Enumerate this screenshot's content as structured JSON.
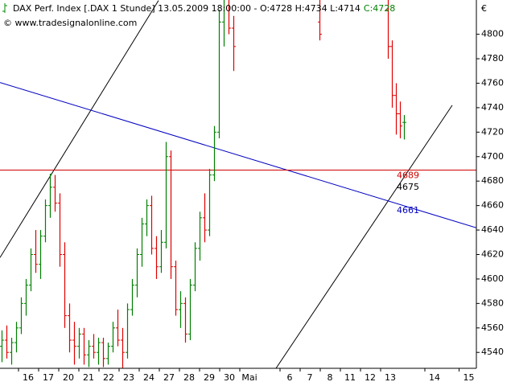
{
  "chart_data": {
    "type": "ohlc",
    "title": "DAX Perf. Index [.DAX  1 Stunde] 13.05.2009 18:00:00 - O:4728 H:4734 L:4714",
    "close_label": "C:4728",
    "watermark": "© www.tradesignalonline.com",
    "y_unit": "€",
    "x": [
      -1.3,
      -1.06,
      -0.82,
      -0.58,
      -0.34,
      -0.1,
      0.14,
      0.38,
      0.62,
      0.86,
      1.1,
      1.34,
      1.58,
      1.82,
      2.06,
      2.3,
      2.54,
      2.78,
      3.02,
      3.26,
      3.5,
      3.74,
      3.98,
      4.22,
      4.46,
      4.7,
      4.94,
      5.18,
      5.42,
      5.66,
      5.9,
      6.14,
      6.38,
      6.62,
      6.86,
      7.1,
      7.34,
      7.58,
      7.82,
      8.06,
      8.3,
      8.54,
      8.78,
      9.02,
      9.26,
      9.5,
      9.74,
      9.98,
      10.22,
      14.5,
      17.9,
      18.1,
      18.3,
      18.5,
      18.7
    ],
    "open": [
      4545,
      4550,
      4540,
      4548,
      4560,
      4580,
      4595,
      4620,
      4612,
      4635,
      4660,
      4675,
      4662,
      4620,
      4570,
      4550,
      4545,
      4555,
      4538,
      4545,
      4540,
      4548,
      4535,
      4545,
      4560,
      4550,
      4540,
      4575,
      4595,
      4620,
      4645,
      4660,
      4625,
      4610,
      4630,
      4700,
      4610,
      4575,
      4580,
      4555,
      4595,
      4625,
      4650,
      4640,
      4685,
      4720,
      4810,
      4830,
      4805,
      4810,
      4820,
      4790,
      4750,
      4735,
      4728
    ],
    "high": [
      4558,
      4562,
      4552,
      4565,
      4585,
      4600,
      4625,
      4640,
      4640,
      4665,
      4686,
      4685,
      4670,
      4630,
      4580,
      4565,
      4560,
      4560,
      4550,
      4555,
      4552,
      4552,
      4548,
      4565,
      4575,
      4560,
      4580,
      4600,
      4625,
      4650,
      4665,
      4668,
      4635,
      4640,
      4712,
      4705,
      4615,
      4590,
      4585,
      4600,
      4630,
      4655,
      4670,
      4690,
      4725,
      4820,
      4840,
      4840,
      4815,
      4830,
      4830,
      4795,
      4760,
      4745,
      4734
    ],
    "low": [
      4532,
      4535,
      4530,
      4540,
      4555,
      4570,
      4590,
      4605,
      4600,
      4630,
      4650,
      4655,
      4610,
      4560,
      4540,
      4530,
      4535,
      4530,
      4528,
      4535,
      4530,
      4528,
      4530,
      4540,
      4545,
      4527,
      4535,
      4570,
      4585,
      4610,
      4635,
      4620,
      4600,
      4605,
      4625,
      4600,
      4570,
      4560,
      4548,
      4550,
      4590,
      4615,
      4630,
      4635,
      4680,
      4715,
      4790,
      4800,
      4770,
      4795,
      4780,
      4740,
      4718,
      4715,
      4714
    ],
    "close": [
      4550,
      4540,
      4548,
      4560,
      4580,
      4595,
      4620,
      4612,
      4635,
      4660,
      4675,
      4662,
      4620,
      4570,
      4550,
      4545,
      4555,
      4538,
      4545,
      4540,
      4548,
      4535,
      4545,
      4560,
      4550,
      4540,
      4575,
      4595,
      4620,
      4645,
      4660,
      4625,
      4610,
      4630,
      4700,
      4610,
      4575,
      4580,
      4555,
      4595,
      4625,
      4650,
      4640,
      4685,
      4720,
      4810,
      4830,
      4805,
      4790,
      4800,
      4790,
      4750,
      4735,
      4725,
      4728
    ],
    "up_color": "#008000",
    "down_color": "#e00000",
    "xlim": [
      -1.4,
      22.28
    ],
    "xticks": [
      {
        "value": 0,
        "label": "16"
      },
      {
        "value": 1,
        "label": "17"
      },
      {
        "value": 2,
        "label": "20"
      },
      {
        "value": 3,
        "label": "21"
      },
      {
        "value": 4,
        "label": "22"
      },
      {
        "value": 5,
        "label": "23"
      },
      {
        "value": 6,
        "label": "24"
      },
      {
        "value": 7,
        "label": "27"
      },
      {
        "value": 8,
        "label": "28"
      },
      {
        "value": 9,
        "label": "29"
      },
      {
        "value": 10,
        "label": "30"
      },
      {
        "value": 11,
        "label": "Mai"
      },
      {
        "value": 13,
        "label": "6"
      },
      {
        "value": 14,
        "label": "7"
      },
      {
        "value": 15,
        "label": "8"
      },
      {
        "value": 16,
        "label": "11"
      },
      {
        "value": 17,
        "label": "12"
      },
      {
        "value": 18,
        "label": "13"
      },
      {
        "value": 20.2,
        "label": "14"
      },
      {
        "value": 21.9,
        "label": "15"
      }
    ],
    "ylim": [
      4527,
      4828
    ],
    "yticks": [
      4540,
      4560,
      4580,
      4600,
      4620,
      4640,
      4660,
      4680,
      4700,
      4720,
      4740,
      4760,
      4780,
      4800
    ],
    "trend_lines": [
      {
        "color": "#000000",
        "x": [
          -1.4,
          6.48
        ],
        "y": [
          4617.5,
          4827.6
        ]
      },
      {
        "color": "#000000",
        "x": [
          12.32,
          21.08
        ],
        "y": [
          4527,
          4742
        ]
      },
      {
        "color": "#0000c0",
        "x": [
          -1.4,
          22.28
        ],
        "y": [
          4760.6,
          4641.8
        ]
      }
    ],
    "hline": {
      "value": 4689,
      "color": "#d00000"
    },
    "line_labels": [
      {
        "value": 4675,
        "color": "#000000"
      },
      {
        "value": 4661,
        "color": "#0000c0"
      }
    ]
  }
}
